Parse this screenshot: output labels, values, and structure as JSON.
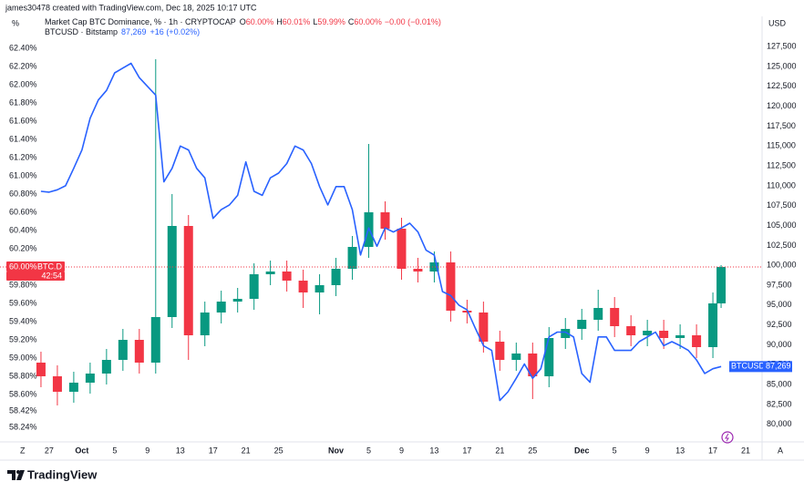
{
  "header": {
    "credit": "james30478 created with TradingView.com, Dec 18, 2025 10:17 UTC",
    "left_unit": "%",
    "right_unit": "USD",
    "left_button": "Z",
    "right_button": "A"
  },
  "footer": {
    "brand": "TradingView"
  },
  "chart_data": {
    "type": "combo",
    "legend": [
      {
        "title": "Market Cap BTC Dominance, % · 1h · CRYPTOCAP",
        "items": [
          {
            "key": "O",
            "label": "60.00%"
          },
          {
            "key": "H",
            "label": "60.01%"
          },
          {
            "key": "L",
            "label": "59.99%"
          },
          {
            "key": "C",
            "label": "60.00%"
          }
        ],
        "change": "−0.00 (−0.01%)"
      },
      {
        "title": "BTCUSD · Bitstamp",
        "price": "87,269",
        "change": "+16 (+0.02%)"
      }
    ],
    "xlim": [
      "Sep 21",
      "Dec 23"
    ],
    "xticks": [
      {
        "value": "Sep 27",
        "label": "27"
      },
      {
        "value": "Oct 1",
        "label": "Oct"
      },
      {
        "value": "Oct 5",
        "label": "5"
      },
      {
        "value": "Oct 9",
        "label": "9"
      },
      {
        "value": "Oct 13",
        "label": "13"
      },
      {
        "value": "Oct 17",
        "label": "17"
      },
      {
        "value": "Oct 21",
        "label": "21"
      },
      {
        "value": "Oct 25",
        "label": "25"
      },
      {
        "value": "Nov 1",
        "label": "Nov"
      },
      {
        "value": "Nov 5",
        "label": "5"
      },
      {
        "value": "Nov 9",
        "label": "9"
      },
      {
        "value": "Nov 13",
        "label": "13"
      },
      {
        "value": "Nov 17",
        "label": "17"
      },
      {
        "value": "Nov 21",
        "label": "21"
      },
      {
        "value": "Nov 25",
        "label": "25"
      },
      {
        "value": "Dec 1",
        "label": "Dec"
      },
      {
        "value": "Dec 5",
        "label": "5"
      },
      {
        "value": "Dec 9",
        "label": "9"
      },
      {
        "value": "Dec 13",
        "label": "13"
      },
      {
        "value": "Dec 17",
        "label": "17"
      },
      {
        "value": "Dec 21",
        "label": "21"
      }
    ],
    "ylim": [
      58.08,
      62.75
    ],
    "yticks": [
      {
        "value": 62.4,
        "label": "62.40%"
      },
      {
        "value": 62.2,
        "label": "62.20%"
      },
      {
        "value": 62.0,
        "label": "62.00%"
      },
      {
        "value": 61.8,
        "label": "61.80%"
      },
      {
        "value": 61.6,
        "label": "61.60%"
      },
      {
        "value": 61.4,
        "label": "61.40%"
      },
      {
        "value": 61.2,
        "label": "61.20%"
      },
      {
        "value": 61.0,
        "label": "61.00%"
      },
      {
        "value": 60.8,
        "label": "60.80%"
      },
      {
        "value": 60.6,
        "label": "60.60%"
      },
      {
        "value": 60.4,
        "label": "60.40%"
      },
      {
        "value": 60.2,
        "label": "60.20%"
      },
      {
        "value": 59.8,
        "label": "59.80%"
      },
      {
        "value": 59.6,
        "label": "59.60%"
      },
      {
        "value": 59.4,
        "label": "59.40%"
      },
      {
        "value": 59.2,
        "label": "59.20%"
      },
      {
        "value": 59.0,
        "label": "59.00%"
      },
      {
        "value": 58.8,
        "label": "58.80%"
      },
      {
        "value": 58.6,
        "label": "58.60%"
      },
      {
        "value": 58.42,
        "label": "58.42%"
      },
      {
        "value": 58.24,
        "label": "58.24%"
      }
    ],
    "y2lim": [
      77800,
      131300
    ],
    "y2ticks": [
      {
        "value": 127500,
        "label": "127,500"
      },
      {
        "value": 125000,
        "label": "125,000"
      },
      {
        "value": 122500,
        "label": "122,500"
      },
      {
        "value": 120000,
        "label": "120,000"
      },
      {
        "value": 117500,
        "label": "117,500"
      },
      {
        "value": 115000,
        "label": "115,000"
      },
      {
        "value": 112500,
        "label": "112,500"
      },
      {
        "value": 110000,
        "label": "110,000"
      },
      {
        "value": 107500,
        "label": "107,500"
      },
      {
        "value": 105000,
        "label": "105,000"
      },
      {
        "value": 102500,
        "label": "102,500"
      },
      {
        "value": 100000,
        "label": "100,000"
      },
      {
        "value": 97500,
        "label": "97,500"
      },
      {
        "value": 95000,
        "label": "95,000"
      },
      {
        "value": 92500,
        "label": "92,500"
      },
      {
        "value": 90000,
        "label": "90,000"
      },
      {
        "value": 87500,
        "label": "87,500"
      },
      {
        "value": 85000,
        "label": "85,000"
      },
      {
        "value": 82500,
        "label": "82,500"
      },
      {
        "value": 80000,
        "label": "80,000"
      }
    ],
    "grid": false,
    "series": [
      {
        "name": "BTC.D",
        "type": "candlestick",
        "up_color": "#089981",
        "down_color": "#f23645",
        "x": [
          "Sep 26",
          "Sep 28",
          "Sep 30",
          "Oct 2",
          "Oct 4",
          "Oct 6",
          "Oct 8",
          "Oct 10",
          "Oct 12",
          "Oct 14",
          "Oct 16",
          "Oct 18",
          "Oct 20",
          "Oct 22",
          "Oct 24",
          "Oct 26",
          "Oct 28",
          "Oct 30",
          "Nov 1",
          "Nov 3",
          "Nov 5",
          "Nov 7",
          "Nov 9",
          "Nov 11",
          "Nov 13",
          "Nov 15",
          "Nov 17",
          "Nov 19",
          "Nov 21",
          "Nov 23",
          "Nov 25",
          "Nov 27",
          "Nov 29",
          "Dec 1",
          "Dec 3",
          "Dec 5",
          "Dec 7",
          "Dec 9",
          "Dec 11",
          "Dec 13",
          "Dec 15",
          "Dec 17",
          "Dec 18"
        ],
        "open": [
          58.95,
          58.8,
          58.63,
          58.73,
          58.83,
          58.98,
          59.2,
          58.95,
          59.45,
          60.45,
          59.25,
          59.5,
          59.62,
          59.65,
          59.92,
          59.95,
          59.85,
          59.72,
          59.8,
          59.98,
          60.22,
          60.6,
          60.42,
          59.98,
          59.95,
          60.05,
          59.52,
          59.5,
          59.18,
          58.98,
          59.05,
          58.8,
          59.22,
          59.32,
          59.42,
          59.55,
          59.35,
          59.25,
          59.3,
          59.22,
          59.25,
          59.12,
          59.6
        ],
        "high": [
          59.07,
          58.92,
          58.85,
          58.95,
          59.1,
          59.32,
          59.32,
          62.28,
          60.8,
          60.57,
          59.62,
          59.74,
          59.77,
          60.04,
          60.07,
          60.07,
          59.97,
          59.92,
          60.1,
          60.34,
          61.35,
          60.72,
          60.54,
          60.1,
          60.17,
          60.17,
          59.64,
          59.62,
          59.3,
          59.17,
          59.17,
          59.34,
          59.44,
          59.54,
          59.75,
          59.67,
          59.47,
          59.42,
          59.42,
          59.37,
          59.37,
          59.72,
          60.02
        ],
        "low": [
          58.68,
          58.48,
          58.51,
          58.61,
          58.71,
          58.86,
          58.83,
          58.83,
          59.33,
          58.98,
          59.13,
          59.38,
          59.5,
          59.53,
          59.8,
          59.73,
          59.55,
          59.48,
          59.68,
          59.86,
          60.1,
          60.3,
          59.86,
          59.83,
          59.83,
          59.4,
          59.38,
          59.06,
          58.86,
          58.86,
          58.55,
          58.68,
          59.1,
          59.2,
          59.3,
          59.23,
          59.13,
          59.13,
          59.1,
          59.1,
          59.0,
          59.0,
          59.55
        ],
        "close": [
          58.8,
          58.63,
          58.73,
          58.83,
          58.98,
          59.2,
          58.95,
          59.45,
          60.45,
          59.25,
          59.5,
          59.62,
          59.65,
          59.92,
          59.95,
          59.85,
          59.72,
          59.8,
          59.98,
          60.22,
          60.6,
          60.42,
          59.98,
          59.95,
          60.05,
          59.52,
          59.5,
          59.18,
          58.98,
          59.05,
          58.8,
          59.22,
          59.32,
          59.42,
          59.55,
          59.35,
          59.25,
          59.3,
          59.22,
          59.25,
          59.12,
          59.6,
          60.0
        ],
        "last": {
          "value": 60.0,
          "label": "60.00%"
        },
        "countdown": "42:54"
      },
      {
        "name": "BTCUSD",
        "type": "line",
        "axis": "y2",
        "color": "#2962ff",
        "x": [
          "Sep 26",
          "Sep 27",
          "Sep 28",
          "Sep 29",
          "Sep 30",
          "Oct 1",
          "Oct 2",
          "Oct 3",
          "Oct 4",
          "Oct 5",
          "Oct 6",
          "Oct 7",
          "Oct 8",
          "Oct 9",
          "Oct 10",
          "Oct 11",
          "Oct 12",
          "Oct 13",
          "Oct 14",
          "Oct 15",
          "Oct 16",
          "Oct 17",
          "Oct 18",
          "Oct 19",
          "Oct 20",
          "Oct 21",
          "Oct 22",
          "Oct 23",
          "Oct 24",
          "Oct 25",
          "Oct 26",
          "Oct 27",
          "Oct 28",
          "Oct 29",
          "Oct 30",
          "Oct 31",
          "Nov 1",
          "Nov 2",
          "Nov 3",
          "Nov 4",
          "Nov 5",
          "Nov 6",
          "Nov 7",
          "Nov 8",
          "Nov 9",
          "Nov 10",
          "Nov 11",
          "Nov 12",
          "Nov 13",
          "Nov 14",
          "Nov 15",
          "Nov 16",
          "Nov 17",
          "Nov 18",
          "Nov 19",
          "Nov 20",
          "Nov 21",
          "Nov 22",
          "Nov 23",
          "Nov 24",
          "Nov 25",
          "Nov 26",
          "Nov 27",
          "Nov 28",
          "Nov 29",
          "Nov 30",
          "Dec 1",
          "Dec 2",
          "Dec 3",
          "Dec 4",
          "Dec 5",
          "Dec 6",
          "Dec 7",
          "Dec 8",
          "Dec 9",
          "Dec 10",
          "Dec 11",
          "Dec 12",
          "Dec 13",
          "Dec 14",
          "Dec 15",
          "Dec 16",
          "Dec 17",
          "Dec 18"
        ],
        "values": [
          109300,
          109200,
          109500,
          110000,
          112200,
          114500,
          118500,
          120800,
          122000,
          124200,
          124800,
          125400,
          123600,
          122500,
          121400,
          110500,
          112200,
          115000,
          114500,
          112200,
          111000,
          105900,
          107000,
          107600,
          108800,
          113000,
          109300,
          108800,
          111000,
          111600,
          112800,
          115000,
          114500,
          112800,
          109900,
          107600,
          109900,
          109900,
          107000,
          101300,
          104700,
          102400,
          104700,
          104200,
          104700,
          105300,
          104200,
          101900,
          101300,
          96700,
          96200,
          95000,
          94400,
          92100,
          89900,
          89300,
          83000,
          84100,
          85800,
          87600,
          85800,
          87000,
          91000,
          91600,
          91600,
          91000,
          86400,
          85300,
          91000,
          91000,
          89300,
          89300,
          89300,
          90400,
          91000,
          91600,
          89900,
          90400,
          89900,
          89300,
          88100,
          86400,
          87000,
          87269
        ],
        "last": {
          "value": 87269,
          "label": "87,269"
        }
      }
    ]
  }
}
